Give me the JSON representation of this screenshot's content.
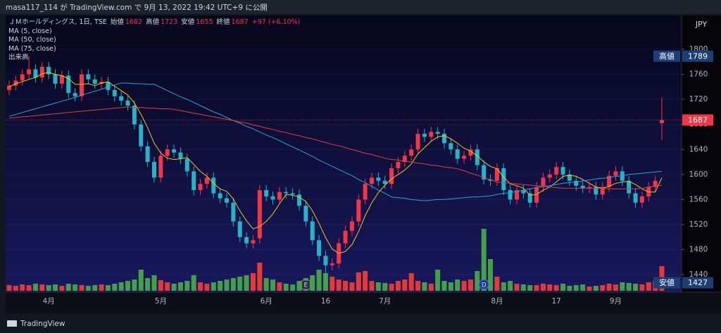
{
  "header": {
    "text": "masa117_114 が TradingView.com で 9月 13, 2022 19:42 UTC+9 に公開"
  },
  "footer": {
    "brand": "TradingView"
  },
  "chart_data": {
    "type": "candlestick",
    "symbol": "ＪＭホールディングス, 1日, TSE",
    "ohlc_labels": {
      "open": "始値",
      "high": "高値",
      "low": "安値",
      "close": "終値"
    },
    "change_label": "+97 (+6.10%)",
    "currency": "JPY",
    "categories": [
      null,
      null,
      null,
      null,
      null,
      null,
      "4月",
      null,
      null,
      null,
      null,
      null,
      null,
      null,
      null,
      null,
      null,
      null,
      null,
      null,
      null,
      null,
      null,
      "5月",
      null,
      null,
      null,
      null,
      null,
      null,
      null,
      null,
      null,
      null,
      null,
      null,
      null,
      null,
      null,
      "6月",
      null,
      null,
      null,
      null,
      null,
      null,
      null,
      null,
      "16",
      null,
      null,
      null,
      null,
      null,
      null,
      null,
      null,
      "7月",
      null,
      null,
      null,
      null,
      null,
      null,
      null,
      null,
      null,
      null,
      null,
      null,
      null,
      null,
      null,
      null,
      "8月",
      null,
      null,
      null,
      null,
      null,
      null,
      null,
      null,
      "17",
      null,
      null,
      null,
      null,
      null,
      null,
      null,
      null,
      "9月",
      null,
      null,
      null,
      null,
      null,
      null,
      null
    ],
    "open": [
      1735,
      1742,
      1750,
      1760,
      1768,
      1755,
      1772,
      1760,
      1745,
      1758,
      1730,
      1725,
      1760,
      1752,
      1745,
      1748,
      1735,
      1725,
      1718,
      1710,
      1680,
      1645,
      1620,
      1595,
      1630,
      1640,
      1635,
      1625,
      1605,
      1575,
      1585,
      1595,
      1570,
      1562,
      1555,
      1525,
      1500,
      1490,
      1498,
      1575,
      1565,
      1560,
      1572,
      1570,
      1568,
      1550,
      1525,
      1495,
      1470,
      1455,
      1458,
      1490,
      1510,
      1525,
      1560,
      1585,
      1595,
      1590,
      1585,
      1610,
      1620,
      1630,
      1640,
      1665,
      1660,
      1668,
      1665,
      1650,
      1640,
      1625,
      1630,
      1640,
      1615,
      1592,
      1590,
      1610,
      1575,
      1560,
      1575,
      1570,
      1555,
      1580,
      1595,
      1600,
      1612,
      1600,
      1590,
      1582,
      1578,
      1580,
      1568,
      1580,
      1598,
      1605,
      1590,
      1570,
      1555,
      1565,
      1580,
      1682
    ],
    "high": [
      1750,
      1758,
      1768,
      1789,
      1776,
      1780,
      1780,
      1768,
      1766,
      1766,
      1738,
      1768,
      1768,
      1760,
      1756,
      1756,
      1743,
      1733,
      1726,
      1718,
      1688,
      1653,
      1628,
      1638,
      1648,
      1648,
      1643,
      1633,
      1613,
      1593,
      1603,
      1603,
      1578,
      1570,
      1563,
      1533,
      1508,
      1503,
      1583,
      1583,
      1573,
      1580,
      1580,
      1578,
      1576,
      1558,
      1533,
      1503,
      1478,
      1466,
      1498,
      1518,
      1533,
      1568,
      1593,
      1603,
      1603,
      1598,
      1618,
      1628,
      1638,
      1648,
      1673,
      1673,
      1676,
      1676,
      1673,
      1658,
      1648,
      1638,
      1648,
      1648,
      1623,
      1600,
      1618,
      1618,
      1583,
      1583,
      1583,
      1578,
      1588,
      1603,
      1608,
      1620,
      1620,
      1608,
      1598,
      1590,
      1588,
      1588,
      1588,
      1606,
      1613,
      1613,
      1598,
      1578,
      1573,
      1588,
      1598,
      1723
    ],
    "low": [
      1727,
      1734,
      1742,
      1752,
      1747,
      1747,
      1752,
      1737,
      1737,
      1722,
      1717,
      1717,
      1744,
      1737,
      1737,
      1727,
      1717,
      1710,
      1702,
      1672,
      1637,
      1612,
      1587,
      1587,
      1622,
      1627,
      1617,
      1597,
      1567,
      1567,
      1577,
      1562,
      1554,
      1547,
      1517,
      1492,
      1482,
      1482,
      1490,
      1557,
      1552,
      1552,
      1562,
      1560,
      1542,
      1517,
      1487,
      1462,
      1427,
      1447,
      1450,
      1482,
      1502,
      1517,
      1552,
      1577,
      1582,
      1577,
      1577,
      1602,
      1612,
      1622,
      1632,
      1652,
      1652,
      1657,
      1642,
      1632,
      1617,
      1617,
      1622,
      1607,
      1584,
      1582,
      1582,
      1567,
      1552,
      1552,
      1562,
      1547,
      1547,
      1572,
      1587,
      1592,
      1592,
      1582,
      1574,
      1570,
      1570,
      1560,
      1560,
      1572,
      1590,
      1582,
      1562,
      1547,
      1547,
      1557,
      1572,
      1655
    ],
    "close": [
      1742,
      1750,
      1760,
      1768,
      1755,
      1772,
      1760,
      1745,
      1758,
      1730,
      1725,
      1760,
      1752,
      1745,
      1748,
      1735,
      1725,
      1718,
      1710,
      1680,
      1645,
      1620,
      1595,
      1630,
      1640,
      1635,
      1625,
      1605,
      1575,
      1585,
      1595,
      1570,
      1562,
      1555,
      1525,
      1500,
      1490,
      1495,
      1575,
      1565,
      1560,
      1572,
      1570,
      1568,
      1550,
      1525,
      1495,
      1470,
      1455,
      1458,
      1490,
      1510,
      1525,
      1560,
      1585,
      1595,
      1590,
      1585,
      1610,
      1620,
      1630,
      1640,
      1665,
      1660,
      1668,
      1665,
      1650,
      1640,
      1625,
      1630,
      1640,
      1615,
      1592,
      1590,
      1610,
      1575,
      1560,
      1575,
      1570,
      1555,
      1580,
      1595,
      1600,
      1612,
      1600,
      1590,
      1582,
      1578,
      1580,
      1568,
      1580,
      1598,
      1605,
      1590,
      1570,
      1555,
      1565,
      1580,
      1590,
      1687
    ],
    "up_color": "#f23645",
    "down_color": "#26b3c6",
    "volume": {
      "name": "出来高",
      "ylim": [
        0,
        100
      ],
      "up_color": "#e53935",
      "down_color": "#43a047",
      "values": [
        8,
        7,
        9,
        8,
        10,
        9,
        8,
        9,
        7,
        10,
        9,
        8,
        7,
        8,
        9,
        8,
        10,
        12,
        14,
        16,
        30,
        18,
        22,
        15,
        12,
        10,
        12,
        14,
        22,
        12,
        10,
        12,
        14,
        16,
        18,
        20,
        22,
        25,
        40,
        18,
        16,
        12,
        10,
        9,
        14,
        18,
        22,
        30,
        25,
        20,
        16,
        14,
        12,
        26,
        28,
        14,
        12,
        11,
        10,
        14,
        16,
        25,
        14,
        12,
        10,
        30,
        14,
        12,
        16,
        14,
        16,
        28,
        88,
        45,
        20,
        12,
        14,
        10,
        9,
        8,
        8,
        10,
        9,
        8,
        10,
        7,
        8,
        9,
        6,
        7,
        8,
        10,
        9,
        12,
        11,
        10,
        9,
        12,
        14,
        35
      ]
    },
    "series": [
      {
        "name": "MA (5, close)",
        "color": "#f2c31b",
        "values": [
          1740,
          1745,
          1748,
          1752,
          1755,
          1761,
          1763,
          1760,
          1758,
          1753,
          1744,
          1744,
          1745,
          1742,
          1746,
          1748,
          1741,
          1734,
          1727,
          1714,
          1696,
          1675,
          1650,
          1634,
          1626,
          1624,
          1625,
          1627,
          1616,
          1605,
          1597,
          1586,
          1577,
          1573,
          1561,
          1542,
          1526,
          1513,
          1517,
          1525,
          1537,
          1553,
          1568,
          1567,
          1564,
          1557,
          1542,
          1522,
          1499,
          1481,
          1474,
          1477,
          1488,
          1509,
          1534,
          1555,
          1571,
          1583,
          1593,
          1600,
          1607,
          1617,
          1633,
          1643,
          1653,
          1660,
          1662,
          1657,
          1650,
          1642,
          1637,
          1630,
          1620,
          1613,
          1609,
          1596,
          1585,
          1582,
          1578,
          1567,
          1568,
          1575,
          1580,
          1588,
          1597,
          1599,
          1597,
          1592,
          1586,
          1580,
          1578,
          1581,
          1586,
          1588,
          1589,
          1584,
          1577,
          1572,
          1572,
          1595
        ]
      },
      {
        "name": "MA (50, close)",
        "color": "#27a3d6",
        "values": [
          1693,
          1696,
          1699,
          1702,
          1705,
          1708,
          1711,
          1714,
          1717,
          1720,
          1723,
          1727,
          1730,
          1733,
          1736,
          1740,
          1743,
          1746,
          1746,
          1745,
          1745,
          1744,
          1744,
          1739,
          1734,
          1729,
          1724,
          1720,
          1715,
          1710,
          1705,
          1700,
          1696,
          1691,
          1686,
          1682,
          1677,
          1673,
          1668,
          1663,
          1659,
          1654,
          1649,
          1644,
          1639,
          1634,
          1629,
          1623,
          1618,
          1613,
          1608,
          1603,
          1598,
          1592,
          1587,
          1581,
          1575,
          1570,
          1564,
          1563,
          1562,
          1560,
          1559,
          1558,
          1559,
          1560,
          1560,
          1561,
          1562,
          1563,
          1564,
          1564,
          1565,
          1566,
          1568,
          1570,
          1571,
          1573,
          1575,
          1577,
          1579,
          1581,
          1582,
          1584,
          1586,
          1587,
          1588,
          1590,
          1591,
          1593,
          1594,
          1595,
          1597,
          1598,
          1600,
          1601,
          1602,
          1603,
          1604,
          1605
        ]
      },
      {
        "name": "MA (75, close)",
        "color": "#e0403a",
        "values": [
          1690,
          1691,
          1692,
          1693,
          1694,
          1695,
          1696,
          1697,
          1698,
          1699,
          1700,
          1701,
          1702,
          1703,
          1704,
          1705,
          1706,
          1707,
          1708,
          1707,
          1707,
          1706,
          1706,
          1705,
          1705,
          1704,
          1702,
          1700,
          1698,
          1696,
          1694,
          1692,
          1690,
          1688,
          1686,
          1684,
          1682,
          1679,
          1677,
          1674,
          1672,
          1669,
          1667,
          1664,
          1662,
          1659,
          1657,
          1654,
          1651,
          1648,
          1646,
          1643,
          1640,
          1637,
          1634,
          1632,
          1629,
          1626,
          1624,
          1623,
          1621,
          1620,
          1618,
          1617,
          1615,
          1614,
          1612,
          1611,
          1609,
          1606,
          1602,
          1599,
          1595,
          1592,
          1588,
          1587,
          1586,
          1585,
          1584,
          1583,
          1582,
          1581,
          1580,
          1579,
          1578,
          1578,
          1578,
          1578,
          1578,
          1578,
          1578,
          1577,
          1577,
          1577,
          1577,
          1577,
          1578,
          1580,
          1581,
          1583
        ]
      }
    ],
    "ylim": [
      1412,
      1854
    ],
    "yticks": [
      1440,
      1480,
      1520,
      1560,
      1600,
      1640,
      1680,
      1720,
      1760,
      1800
    ],
    "period_high": 1789,
    "period_low": 1427,
    "events": [
      {
        "label": "E",
        "index": 45
      },
      {
        "label": "D",
        "index": 72
      }
    ],
    "grid": true
  }
}
